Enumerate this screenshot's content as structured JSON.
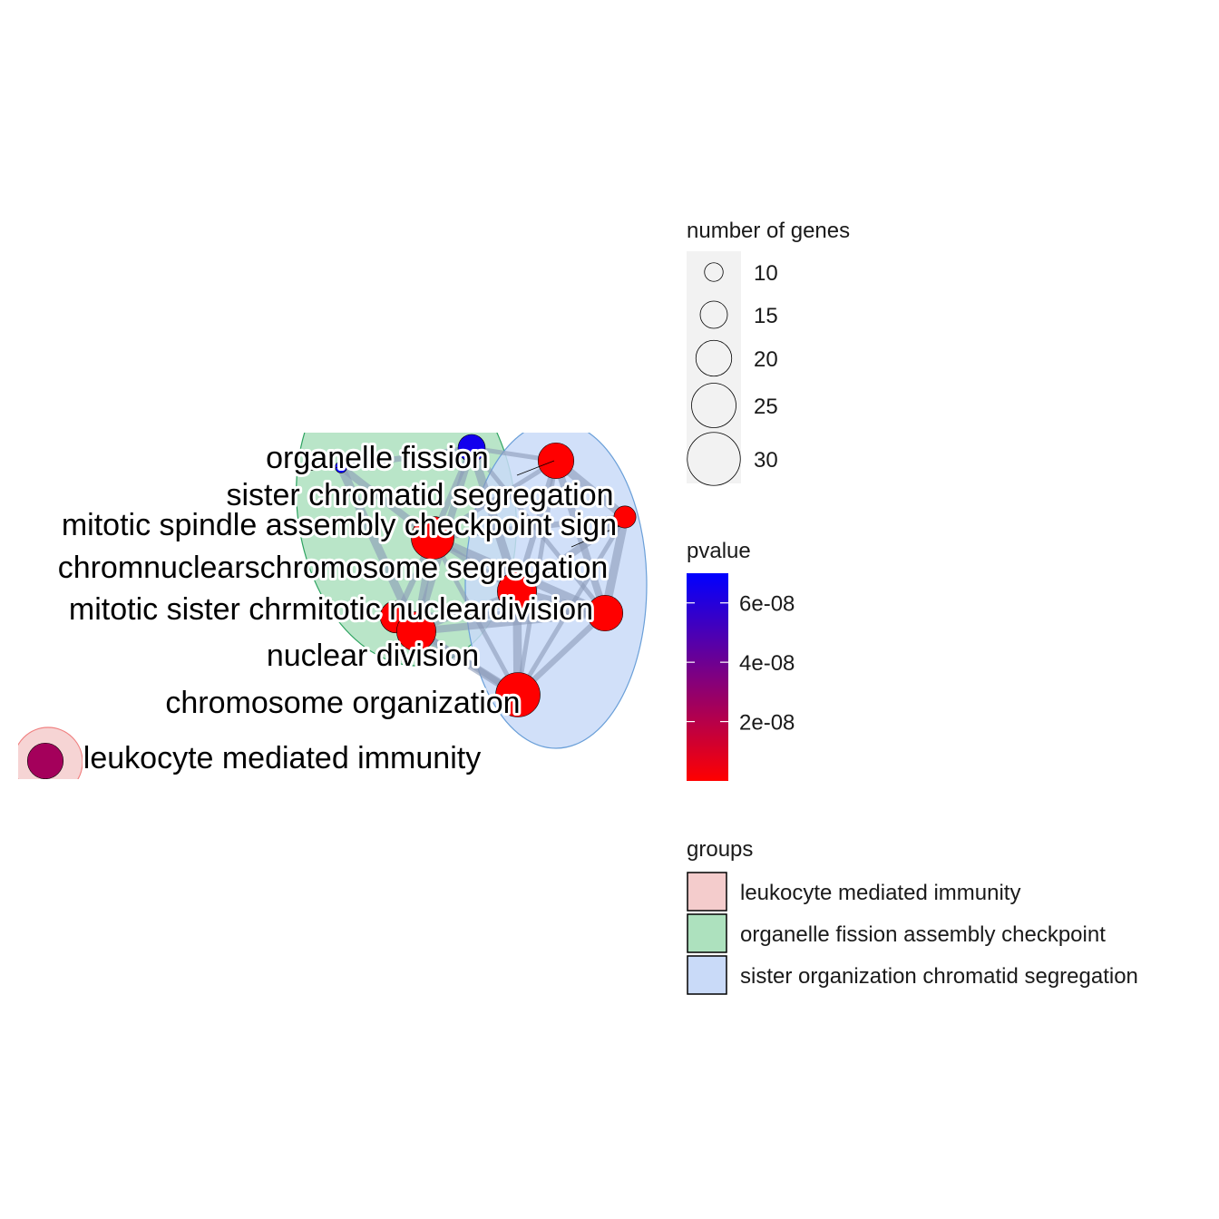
{
  "network": {
    "nodes": [
      {
        "id": "organelle_fission",
        "label": "organelle fission",
        "pvalue": 6.5e-08,
        "size": 15,
        "group": "organelle fission assembly checkpoint"
      },
      {
        "id": "sister_chromatid_segregation",
        "label": "sister chromatid segregation",
        "pvalue": 1e-10,
        "size": 20,
        "group": "sister organization chromatid segregation"
      },
      {
        "id": "mitotic_spindle_assembly_checkpoint",
        "label": "mitotic spindle assembly checkpoint sign",
        "pvalue": 1e-10,
        "size": 12,
        "group": "sister organization chromatid segregation"
      },
      {
        "id": "chromosome_segregation",
        "label": "chromosome segregation",
        "pvalue": 1e-10,
        "size": 24,
        "group": "sister organization chromatid segregation"
      },
      {
        "id": "nuclear_chromosome_segregation",
        "label": "nuclear chromosome segregation",
        "pvalue": 1e-10,
        "size": 22,
        "group": "organelle fission assembly checkpoint"
      },
      {
        "id": "mitotic_nuclear_division",
        "label": "mitotic nuclear division",
        "pvalue": 1e-10,
        "size": 20,
        "group": "sister organization chromatid segregation"
      },
      {
        "id": "mitotic_sister_chromatid_segregation",
        "label": "mitotic sister chromatid segregation",
        "pvalue": 1e-10,
        "size": 18,
        "group": "sister organization chromatid segregation"
      },
      {
        "id": "nuclear_division",
        "label": "nuclear division",
        "pvalue": 1e-10,
        "size": 22,
        "group": "organelle fission assembly checkpoint"
      },
      {
        "id": "chromosome_organization",
        "label": "chromosome organization",
        "pvalue": 1e-10,
        "size": 25,
        "group": "sister organization chromatid segregation"
      },
      {
        "id": "spindle_checkpoint",
        "label": "",
        "pvalue": 6.8e-08,
        "size": 6,
        "group": "organelle fission assembly checkpoint"
      },
      {
        "id": "leukocyte_mediated_immunity",
        "label": "leukocyte mediated immunity",
        "pvalue": 2.5e-08,
        "size": 20,
        "group": "leukocyte mediated immunity"
      }
    ],
    "visible_label_fragments": [
      "organelle fission",
      "sister chromatid segregation",
      "mitotic spindle assembly checkpoint sign",
      "chromnuclearschromosome segregation",
      "mitotic sister chrmitotic nucleardivision",
      "nuclear division",
      "chromosome organization",
      "leukocyte mediated immunity"
    ]
  },
  "legend": {
    "size": {
      "title": "number of genes",
      "items": [
        {
          "label": "10",
          "value": 10
        },
        {
          "label": "15",
          "value": 15
        },
        {
          "label": "20",
          "value": 20
        },
        {
          "label": "25",
          "value": 25
        },
        {
          "label": "30",
          "value": 30
        }
      ]
    },
    "color": {
      "title": "pvalue",
      "low_color": "#ff0000",
      "high_color": "#0000ff",
      "range": [
        0,
        7e-08
      ],
      "ticks": [
        {
          "label": "2e-08",
          "value": 2e-08
        },
        {
          "label": "4e-08",
          "value": 4e-08
        },
        {
          "label": "6e-08",
          "value": 6e-08
        }
      ]
    },
    "groups": {
      "title": "groups",
      "items": [
        {
          "label": "leukocyte mediated immunity",
          "fill": "#f4cccc",
          "stroke": "#f08080"
        },
        {
          "label": "organelle fission assembly checkpoint",
          "fill": "#ade1be",
          "stroke": "#2ca25f"
        },
        {
          "label": "sister organization chromatid segregation",
          "fill": "#c9daf8",
          "stroke": "#6a9fd8"
        }
      ]
    }
  }
}
